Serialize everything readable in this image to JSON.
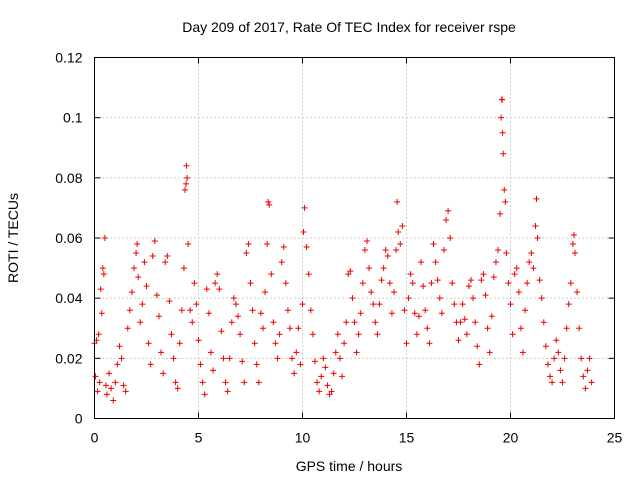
{
  "chart_data": {
    "type": "scatter",
    "title": "Day 209 of 2017, Rate Of TEC Index for receiver rspe",
    "xlabel": "GPS time / hours",
    "ylabel": "ROTI / TECUs",
    "xlim": [
      0,
      25
    ],
    "ylim": [
      0,
      0.12
    ],
    "x_ticks": [
      "0",
      "5",
      "10",
      "15",
      "20",
      "25"
    ],
    "y_ticks": [
      "0",
      "0.02",
      "0.04",
      "0.06",
      "0.08",
      "0.1",
      "0.12"
    ],
    "grid": true,
    "marker": "plus",
    "colors": {
      "points": "#ee0000",
      "grid": "#a0a0a0",
      "frame": "#000000"
    },
    "series": [
      {
        "points": [
          [
            0.0,
            0.025
          ],
          [
            0.05,
            0.014
          ],
          [
            0.1,
            0.026
          ],
          [
            0.15,
            0.009
          ],
          [
            0.2,
            0.028
          ],
          [
            0.25,
            0.012
          ],
          [
            0.3,
            0.043
          ],
          [
            0.35,
            0.035
          ],
          [
            0.4,
            0.05
          ],
          [
            0.45,
            0.048
          ],
          [
            0.5,
            0.06
          ],
          [
            0.55,
            0.011
          ],
          [
            0.6,
            0.008
          ],
          [
            0.7,
            0.015
          ],
          [
            0.8,
            0.01
          ],
          [
            0.9,
            0.006
          ],
          [
            1.0,
            0.012
          ],
          [
            1.1,
            0.018
          ],
          [
            1.2,
            0.024
          ],
          [
            1.3,
            0.02
          ],
          [
            1.4,
            0.011
          ],
          [
            1.5,
            0.009
          ],
          [
            1.6,
            0.03
          ],
          [
            1.7,
            0.036
          ],
          [
            1.8,
            0.042
          ],
          [
            1.9,
            0.05
          ],
          [
            2.0,
            0.055
          ],
          [
            2.05,
            0.058
          ],
          [
            2.1,
            0.047
          ],
          [
            2.2,
            0.032
          ],
          [
            2.3,
            0.038
          ],
          [
            2.4,
            0.052
          ],
          [
            2.5,
            0.044
          ],
          [
            2.6,
            0.025
          ],
          [
            2.7,
            0.018
          ],
          [
            2.8,
            0.054
          ],
          [
            2.9,
            0.059
          ],
          [
            3.0,
            0.041
          ],
          [
            3.1,
            0.034
          ],
          [
            3.2,
            0.022
          ],
          [
            3.3,
            0.015
          ],
          [
            3.4,
            0.052
          ],
          [
            3.5,
            0.054
          ],
          [
            3.6,
            0.039
          ],
          [
            3.7,
            0.028
          ],
          [
            3.8,
            0.02
          ],
          [
            3.9,
            0.012
          ],
          [
            4.0,
            0.01
          ],
          [
            4.1,
            0.025
          ],
          [
            4.2,
            0.036
          ],
          [
            4.3,
            0.05
          ],
          [
            4.35,
            0.076
          ],
          [
            4.4,
            0.078
          ],
          [
            4.42,
            0.084
          ],
          [
            4.45,
            0.08
          ],
          [
            4.5,
            0.058
          ],
          [
            4.6,
            0.036
          ],
          [
            4.7,
            0.032
          ],
          [
            4.8,
            0.045
          ],
          [
            4.9,
            0.038
          ],
          [
            5.0,
            0.026
          ],
          [
            5.1,
            0.018
          ],
          [
            5.2,
            0.012
          ],
          [
            5.3,
            0.008
          ],
          [
            5.4,
            0.043
          ],
          [
            5.5,
            0.035
          ],
          [
            5.6,
            0.022
          ],
          [
            5.7,
            0.016
          ],
          [
            5.8,
            0.045
          ],
          [
            5.9,
            0.048
          ],
          [
            6.0,
            0.043
          ],
          [
            6.1,
            0.029
          ],
          [
            6.2,
            0.02
          ],
          [
            6.3,
            0.012
          ],
          [
            6.4,
            0.009
          ],
          [
            6.5,
            0.02
          ],
          [
            6.6,
            0.032
          ],
          [
            6.7,
            0.04
          ],
          [
            6.8,
            0.038
          ],
          [
            6.9,
            0.034
          ],
          [
            7.0,
            0.028
          ],
          [
            7.1,
            0.019
          ],
          [
            7.2,
            0.012
          ],
          [
            7.3,
            0.055
          ],
          [
            7.4,
            0.058
          ],
          [
            7.5,
            0.045
          ],
          [
            7.6,
            0.036
          ],
          [
            7.7,
            0.025
          ],
          [
            7.8,
            0.018
          ],
          [
            7.9,
            0.012
          ],
          [
            8.0,
            0.035
          ],
          [
            8.1,
            0.03
          ],
          [
            8.2,
            0.042
          ],
          [
            8.3,
            0.058
          ],
          [
            8.35,
            0.072
          ],
          [
            8.4,
            0.071
          ],
          [
            8.5,
            0.048
          ],
          [
            8.6,
            0.032
          ],
          [
            8.7,
            0.025
          ],
          [
            8.8,
            0.02
          ],
          [
            8.9,
            0.028
          ],
          [
            9.0,
            0.052
          ],
          [
            9.1,
            0.057
          ],
          [
            9.2,
            0.045
          ],
          [
            9.3,
            0.036
          ],
          [
            9.4,
            0.03
          ],
          [
            9.5,
            0.02
          ],
          [
            9.6,
            0.015
          ],
          [
            9.7,
            0.022
          ],
          [
            9.8,
            0.03
          ],
          [
            9.9,
            0.018
          ],
          [
            10.0,
            0.038
          ],
          [
            10.05,
            0.062
          ],
          [
            10.1,
            0.07
          ],
          [
            10.2,
            0.057
          ],
          [
            10.3,
            0.048
          ],
          [
            10.4,
            0.036
          ],
          [
            10.5,
            0.028
          ],
          [
            10.6,
            0.019
          ],
          [
            10.7,
            0.012
          ],
          [
            10.8,
            0.009
          ],
          [
            10.9,
            0.014
          ],
          [
            11.0,
            0.02
          ],
          [
            11.1,
            0.017
          ],
          [
            11.2,
            0.011
          ],
          [
            11.3,
            0.008
          ],
          [
            11.4,
            0.009
          ],
          [
            11.5,
            0.015
          ],
          [
            11.6,
            0.022
          ],
          [
            11.7,
            0.028
          ],
          [
            11.8,
            0.02
          ],
          [
            11.9,
            0.014
          ],
          [
            12.0,
            0.025
          ],
          [
            12.1,
            0.032
          ],
          [
            12.2,
            0.048
          ],
          [
            12.3,
            0.049
          ],
          [
            12.4,
            0.04
          ],
          [
            12.5,
            0.032
          ],
          [
            12.6,
            0.022
          ],
          [
            12.7,
            0.028
          ],
          [
            12.8,
            0.035
          ],
          [
            12.9,
            0.045
          ],
          [
            13.0,
            0.056
          ],
          [
            13.1,
            0.059
          ],
          [
            13.2,
            0.05
          ],
          [
            13.3,
            0.042
          ],
          [
            13.4,
            0.038
          ],
          [
            13.5,
            0.032
          ],
          [
            13.6,
            0.028
          ],
          [
            13.7,
            0.038
          ],
          [
            13.8,
            0.046
          ],
          [
            13.9,
            0.05
          ],
          [
            14.0,
            0.056
          ],
          [
            14.1,
            0.054
          ],
          [
            14.2,
            0.045
          ],
          [
            14.3,
            0.035
          ],
          [
            14.4,
            0.042
          ],
          [
            14.5,
            0.056
          ],
          [
            14.55,
            0.072
          ],
          [
            14.6,
            0.062
          ],
          [
            14.7,
            0.058
          ],
          [
            14.8,
            0.064
          ],
          [
            14.9,
            0.036
          ],
          [
            15.0,
            0.025
          ],
          [
            15.1,
            0.04
          ],
          [
            15.2,
            0.048
          ],
          [
            15.3,
            0.045
          ],
          [
            15.4,
            0.035
          ],
          [
            15.5,
            0.028
          ],
          [
            15.6,
            0.034
          ],
          [
            15.7,
            0.052
          ],
          [
            15.8,
            0.044
          ],
          [
            15.9,
            0.036
          ],
          [
            16.0,
            0.03
          ],
          [
            16.1,
            0.025
          ],
          [
            16.2,
            0.045
          ],
          [
            16.3,
            0.058
          ],
          [
            16.4,
            0.052
          ],
          [
            16.5,
            0.046
          ],
          [
            16.6,
            0.04
          ],
          [
            16.7,
            0.035
          ],
          [
            16.8,
            0.056
          ],
          [
            16.9,
            0.066
          ],
          [
            17.0,
            0.069
          ],
          [
            17.1,
            0.06
          ],
          [
            17.2,
            0.045
          ],
          [
            17.3,
            0.038
          ],
          [
            17.4,
            0.032
          ],
          [
            17.5,
            0.026
          ],
          [
            17.6,
            0.032
          ],
          [
            17.7,
            0.038
          ],
          [
            17.8,
            0.033
          ],
          [
            17.9,
            0.028
          ],
          [
            18.0,
            0.044
          ],
          [
            18.1,
            0.046
          ],
          [
            18.2,
            0.04
          ],
          [
            18.3,
            0.032
          ],
          [
            18.4,
            0.024
          ],
          [
            18.5,
            0.018
          ],
          [
            18.6,
            0.046
          ],
          [
            18.7,
            0.048
          ],
          [
            18.8,
            0.041
          ],
          [
            18.9,
            0.03
          ],
          [
            19.0,
            0.022
          ],
          [
            19.1,
            0.034
          ],
          [
            19.2,
            0.047
          ],
          [
            19.3,
            0.052
          ],
          [
            19.4,
            0.056
          ],
          [
            19.5,
            0.068
          ],
          [
            19.55,
            0.1
          ],
          [
            19.58,
            0.106
          ],
          [
            19.6,
            0.106
          ],
          [
            19.62,
            0.095
          ],
          [
            19.65,
            0.088
          ],
          [
            19.7,
            0.076
          ],
          [
            19.75,
            0.072
          ],
          [
            19.8,
            0.055
          ],
          [
            19.9,
            0.045
          ],
          [
            20.0,
            0.038
          ],
          [
            20.1,
            0.028
          ],
          [
            20.2,
            0.048
          ],
          [
            20.3,
            0.05
          ],
          [
            20.4,
            0.042
          ],
          [
            20.5,
            0.03
          ],
          [
            20.6,
            0.022
          ],
          [
            20.7,
            0.036
          ],
          [
            20.8,
            0.045
          ],
          [
            20.9,
            0.052
          ],
          [
            21.0,
            0.055
          ],
          [
            21.1,
            0.05
          ],
          [
            21.2,
            0.064
          ],
          [
            21.25,
            0.073
          ],
          [
            21.3,
            0.06
          ],
          [
            21.4,
            0.046
          ],
          [
            21.5,
            0.04
          ],
          [
            21.6,
            0.032
          ],
          [
            21.7,
            0.024
          ],
          [
            21.8,
            0.018
          ],
          [
            21.9,
            0.014
          ],
          [
            22.0,
            0.012
          ],
          [
            22.1,
            0.02
          ],
          [
            22.2,
            0.026
          ],
          [
            22.3,
            0.022
          ],
          [
            22.4,
            0.016
          ],
          [
            22.5,
            0.012
          ],
          [
            22.6,
            0.02
          ],
          [
            22.7,
            0.03
          ],
          [
            22.8,
            0.038
          ],
          [
            22.9,
            0.045
          ],
          [
            23.0,
            0.058
          ],
          [
            23.05,
            0.061
          ],
          [
            23.1,
            0.055
          ],
          [
            23.2,
            0.042
          ],
          [
            23.3,
            0.03
          ],
          [
            23.4,
            0.02
          ],
          [
            23.5,
            0.014
          ],
          [
            23.6,
            0.01
          ],
          [
            23.7,
            0.016
          ],
          [
            23.8,
            0.02
          ],
          [
            23.9,
            0.012
          ]
        ]
      }
    ]
  }
}
